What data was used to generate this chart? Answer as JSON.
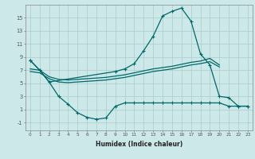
{
  "bg_color": "#cce8e8",
  "grid_color": "#aacccc",
  "line_color": "#006868",
  "xlabel": "Humidex (Indice chaleur)",
  "xlim": [
    -0.5,
    23.5
  ],
  "ylim": [
    -2.2,
    17.0
  ],
  "yticks": [
    -1,
    1,
    3,
    5,
    7,
    9,
    11,
    13,
    15
  ],
  "xticks": [
    0,
    1,
    2,
    3,
    4,
    5,
    6,
    7,
    8,
    9,
    10,
    11,
    12,
    13,
    14,
    15,
    16,
    17,
    18,
    19,
    20,
    21,
    22,
    23
  ],
  "curve_main_x": [
    0,
    1,
    2,
    9,
    10,
    11,
    12,
    13,
    14,
    15,
    16,
    17,
    18,
    19,
    20,
    21,
    22,
    23
  ],
  "curve_main_y": [
    8.5,
    7.0,
    5.2,
    6.8,
    7.2,
    8.0,
    10.0,
    12.2,
    15.3,
    16.0,
    16.5,
    14.5,
    9.5,
    7.8,
    3.0,
    2.8,
    1.5,
    1.5
  ],
  "curve_dip_x": [
    0,
    1,
    2,
    3,
    4,
    5,
    6,
    7,
    8,
    9,
    10,
    11,
    12,
    13,
    14,
    15,
    16,
    17,
    18,
    19,
    20,
    21,
    22,
    23
  ],
  "curve_dip_y": [
    8.5,
    7.0,
    5.2,
    3.0,
    1.8,
    0.5,
    -0.2,
    -0.5,
    -0.3,
    1.5,
    2.0,
    2.0,
    2.0,
    2.0,
    2.0,
    2.0,
    2.0,
    2.0,
    2.0,
    2.0,
    2.0,
    1.5,
    1.5,
    1.5
  ],
  "trend_upper_x": [
    0,
    1,
    2,
    3,
    4,
    5,
    6,
    7,
    8,
    9,
    10,
    11,
    12,
    13,
    14,
    15,
    16,
    17,
    18,
    19,
    20
  ],
  "trend_upper_y": [
    7.2,
    7.0,
    6.0,
    5.6,
    5.5,
    5.6,
    5.7,
    5.8,
    5.9,
    6.1,
    6.3,
    6.6,
    6.9,
    7.2,
    7.4,
    7.6,
    7.9,
    8.2,
    8.4,
    8.8,
    7.8
  ],
  "trend_lower_x": [
    0,
    1,
    2,
    3,
    4,
    5,
    6,
    7,
    8,
    9,
    10,
    11,
    12,
    13,
    14,
    15,
    16,
    17,
    18,
    19,
    20
  ],
  "trend_lower_y": [
    6.8,
    6.6,
    5.7,
    5.2,
    5.1,
    5.2,
    5.3,
    5.4,
    5.5,
    5.7,
    5.9,
    6.2,
    6.5,
    6.8,
    7.0,
    7.2,
    7.5,
    7.8,
    8.0,
    8.3,
    7.5
  ]
}
